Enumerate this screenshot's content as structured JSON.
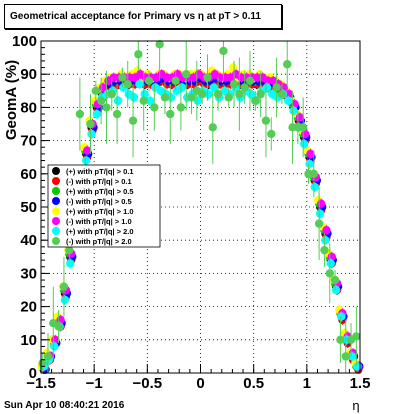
{
  "title": "Geometrical acceptance for Primary vs   η at pT > 0.11",
  "footer_timestamp": "Sun Apr 10 08:40:21 2016",
  "chart_data": {
    "type": "scatter",
    "xlabel": "η",
    "ylabel": "GeomA (%)",
    "xlim": [
      -1.5,
      1.5
    ],
    "ylim": [
      0,
      100
    ],
    "xticks": [
      -1.5,
      -1,
      -0.5,
      0,
      0.5,
      1,
      1.5
    ],
    "xtick_labels": [
      "−1.5",
      "−1",
      "−0.5",
      "0",
      "0.5",
      "1",
      "1.5"
    ],
    "yticks": [
      0,
      10,
      20,
      30,
      40,
      50,
      60,
      70,
      80,
      90,
      100
    ],
    "ytick_labels": [
      "0",
      "10",
      "20",
      "30",
      "40",
      "50",
      "60",
      "70",
      "80",
      "90",
      "100"
    ],
    "grid": true,
    "legend_position": "left-middle",
    "x": [
      -1.475,
      -1.425,
      -1.375,
      -1.325,
      -1.275,
      -1.225,
      -1.175,
      -1.125,
      -1.075,
      -1.025,
      -0.975,
      -0.925,
      -0.875,
      -0.825,
      -0.775,
      -0.725,
      -0.675,
      -0.625,
      -0.575,
      -0.525,
      -0.475,
      -0.425,
      -0.375,
      -0.325,
      -0.275,
      -0.225,
      -0.175,
      -0.125,
      -0.075,
      -0.025,
      0.025,
      0.075,
      0.125,
      0.175,
      0.225,
      0.275,
      0.325,
      0.375,
      0.425,
      0.475,
      0.525,
      0.575,
      0.625,
      0.675,
      0.725,
      0.775,
      0.825,
      0.875,
      0.925,
      0.975,
      1.025,
      1.075,
      1.125,
      1.175,
      1.225,
      1.275,
      1.325,
      1.375,
      1.425,
      1.475
    ],
    "series": [
      {
        "name": "(+) with pT/|q| > 0.1",
        "color": "#000000",
        "y": [
          1,
          5,
          9,
          15,
          24,
          35,
          47,
          57,
          66,
          74,
          80,
          84,
          86,
          87,
          87,
          88,
          87,
          88,
          88,
          87,
          88,
          87,
          88,
          88,
          87,
          88,
          88,
          87,
          88,
          88,
          88,
          87,
          88,
          88,
          87,
          88,
          88,
          87,
          88,
          88,
          87,
          88,
          87,
          87,
          86,
          85,
          83,
          80,
          76,
          71,
          65,
          58,
          50,
          42,
          34,
          26,
          17,
          10,
          5,
          2
        ]
      },
      {
        "name": "(-) with pT/|q| > 0.1",
        "color": "#ff0000",
        "y": [
          1,
          4,
          9,
          14,
          23,
          34,
          46,
          56,
          65,
          73,
          79,
          83,
          85,
          86,
          87,
          87,
          87,
          87,
          88,
          87,
          87,
          87,
          88,
          87,
          87,
          88,
          87,
          87,
          87,
          88,
          87,
          87,
          88,
          87,
          87,
          87,
          88,
          87,
          87,
          87,
          87,
          87,
          86,
          86,
          85,
          84,
          82,
          79,
          75,
          70,
          64,
          57,
          49,
          41,
          33,
          25,
          16,
          9,
          4,
          1
        ]
      },
      {
        "name": "(+) with pT/|q| > 0.5",
        "color": "#00cc00",
        "y": [
          2,
          5,
          10,
          16,
          25,
          36,
          48,
          58,
          67,
          75,
          81,
          85,
          87,
          88,
          88,
          89,
          88,
          89,
          89,
          88,
          89,
          88,
          89,
          89,
          88,
          89,
          89,
          88,
          89,
          89,
          89,
          88,
          89,
          89,
          88,
          89,
          89,
          88,
          89,
          89,
          88,
          89,
          88,
          88,
          87,
          86,
          84,
          81,
          77,
          72,
          66,
          59,
          51,
          43,
          35,
          27,
          18,
          11,
          6,
          2
        ]
      },
      {
        "name": "(-) with pT/|q| > 0.5",
        "color": "#0000ff",
        "y": [
          1,
          5,
          9,
          15,
          24,
          35,
          47,
          57,
          66,
          74,
          80,
          85,
          87,
          88,
          88,
          88,
          88,
          88,
          89,
          88,
          88,
          88,
          89,
          88,
          88,
          89,
          88,
          88,
          88,
          89,
          88,
          88,
          89,
          88,
          88,
          88,
          89,
          88,
          88,
          88,
          88,
          88,
          87,
          87,
          86,
          85,
          83,
          80,
          76,
          71,
          65,
          58,
          50,
          42,
          34,
          26,
          17,
          10,
          5,
          2
        ]
      },
      {
        "name": "(+) with pT/|q| > 1.0",
        "color": "#ffff00",
        "y": [
          2,
          6,
          10,
          17,
          26,
          37,
          49,
          59,
          68,
          76,
          82,
          86,
          88,
          89,
          89,
          90,
          89,
          90,
          91,
          89,
          90,
          89,
          90,
          90,
          89,
          90,
          90,
          89,
          90,
          90,
          90,
          89,
          91,
          90,
          89,
          90,
          92,
          89,
          90,
          90,
          89,
          90,
          89,
          89,
          88,
          87,
          85,
          82,
          78,
          73,
          67,
          60,
          52,
          44,
          36,
          28,
          19,
          12,
          6,
          3
        ]
      },
      {
        "name": "(-) with pT/|q| > 1.0",
        "color": "#ff00ff",
        "y": [
          2,
          5,
          10,
          16,
          25,
          36,
          48,
          58,
          67,
          75,
          81,
          86,
          88,
          89,
          89,
          89,
          89,
          89,
          90,
          89,
          89,
          89,
          90,
          89,
          89,
          90,
          89,
          89,
          89,
          90,
          89,
          89,
          90,
          89,
          89,
          89,
          90,
          89,
          89,
          89,
          89,
          89,
          88,
          88,
          87,
          86,
          84,
          81,
          77,
          72,
          66,
          59,
          51,
          43,
          35,
          27,
          18,
          11,
          6,
          2
        ]
      },
      {
        "name": "(+) with pT/|q| > 2.0",
        "color": "#00ffff",
        "y": [
          2,
          4,
          8,
          14,
          22,
          33,
          45,
          55,
          64,
          72,
          78,
          83,
          84,
          85,
          82,
          86,
          84,
          83,
          87,
          84,
          82,
          86,
          85,
          84,
          83,
          85,
          86,
          83,
          84,
          82,
          85,
          84,
          86,
          83,
          85,
          84,
          86,
          83,
          85,
          84,
          82,
          85,
          86,
          84,
          83,
          84,
          82,
          79,
          74,
          69,
          63,
          56,
          48,
          40,
          33,
          25,
          17,
          10,
          5,
          2
        ]
      },
      {
        "name": "(-) with pT/|q| > 2.0",
        "color": "#55cc55",
        "y": [
          3,
          5,
          15,
          14,
          26,
          37,
          48,
          78,
          60,
          75,
          85,
          82,
          80,
          84,
          78,
          89,
          87,
          76,
          96,
          82,
          88,
          80,
          99,
          83,
          78,
          88,
          80,
          90,
          83,
          85,
          84,
          89,
          74,
          84,
          97,
          83,
          87,
          84,
          86,
          88,
          82,
          84,
          76,
          72,
          86,
          84,
          93,
          74,
          74,
          74,
          60,
          60,
          45,
          37,
          30,
          28,
          10,
          5,
          10,
          11
        ]
      }
    ]
  }
}
